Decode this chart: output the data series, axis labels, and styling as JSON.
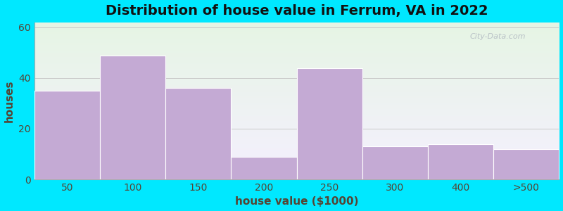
{
  "title": "Distribution of house value in Ferrum, VA in 2022",
  "xlabel": "house value ($1000)",
  "ylabel": "houses",
  "bar_labels": [
    "50",
    "100",
    "150",
    "200",
    "250",
    "300",
    "400",
    ">500"
  ],
  "bar_values": [
    35,
    49,
    36,
    9,
    44,
    13,
    14,
    12
  ],
  "bar_color": "#c4aad4",
  "bar_edgecolor": "#ffffff",
  "yticks": [
    0,
    20,
    40,
    60
  ],
  "ylim": [
    0,
    62
  ],
  "background_outer": "#00e8ff",
  "grad_top": "#e6f5e4",
  "grad_bottom": "#f5f0ff",
  "grid_color": "#c8c8c8",
  "title_fontsize": 14,
  "axis_label_fontsize": 11,
  "tick_fontsize": 10,
  "title_color": "#111111",
  "axis_label_color": "#554433",
  "tick_color": "#554433",
  "watermark": "City-Data.com"
}
